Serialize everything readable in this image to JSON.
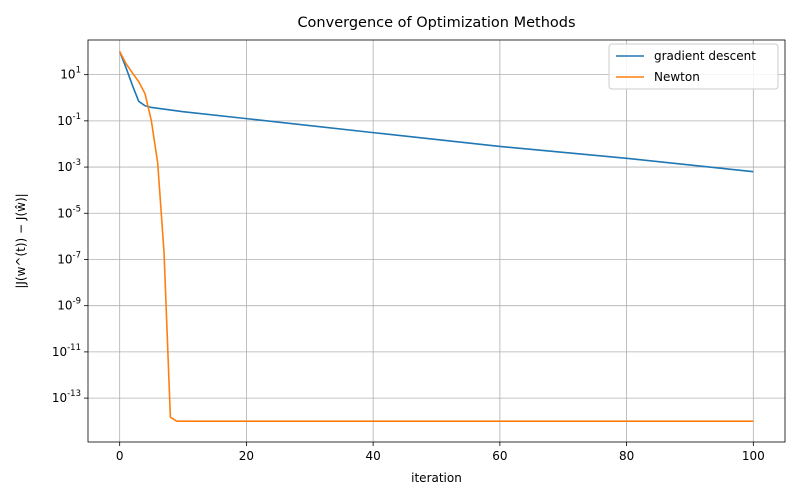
{
  "chart_data": {
    "type": "line",
    "title": "Convergence of Optimization Methods",
    "xlabel": "iteration",
    "ylabel": "|J(w^(t)) − J(ŵ)|",
    "y_scale": "log",
    "xlim": [
      -5,
      105
    ],
    "ylim_log10": [
      -14.9,
      2.5
    ],
    "x_ticks": [
      0,
      20,
      40,
      60,
      80,
      100
    ],
    "y_ticks_log10": [
      1,
      -1,
      -3,
      -5,
      -7,
      -9,
      -11,
      -13
    ],
    "grid": true,
    "legend_position": "top-right",
    "series": [
      {
        "name": "gradient descent",
        "color": "#1f77b4",
        "points": [
          [
            0,
            100
          ],
          [
            1,
            20
          ],
          [
            2,
            3.5
          ],
          [
            3,
            0.7
          ],
          [
            4,
            0.45
          ],
          [
            5,
            0.38
          ],
          [
            10,
            0.25
          ],
          [
            20,
            0.125
          ],
          [
            40,
            0.031
          ],
          [
            60,
            0.0078
          ],
          [
            80,
            0.0024
          ],
          [
            100,
            0.00063
          ]
        ]
      },
      {
        "name": "Newton",
        "color": "#ff7f0e",
        "points": [
          [
            0,
            100
          ],
          [
            1,
            30
          ],
          [
            2,
            12
          ],
          [
            3,
            5
          ],
          [
            4,
            1.5
          ],
          [
            5,
            0.1
          ],
          [
            6,
            0.0015
          ],
          [
            7,
            2e-07
          ],
          [
            8,
            1.5e-14
          ],
          [
            9,
            1e-14
          ],
          [
            100,
            1e-14
          ]
        ]
      }
    ]
  }
}
